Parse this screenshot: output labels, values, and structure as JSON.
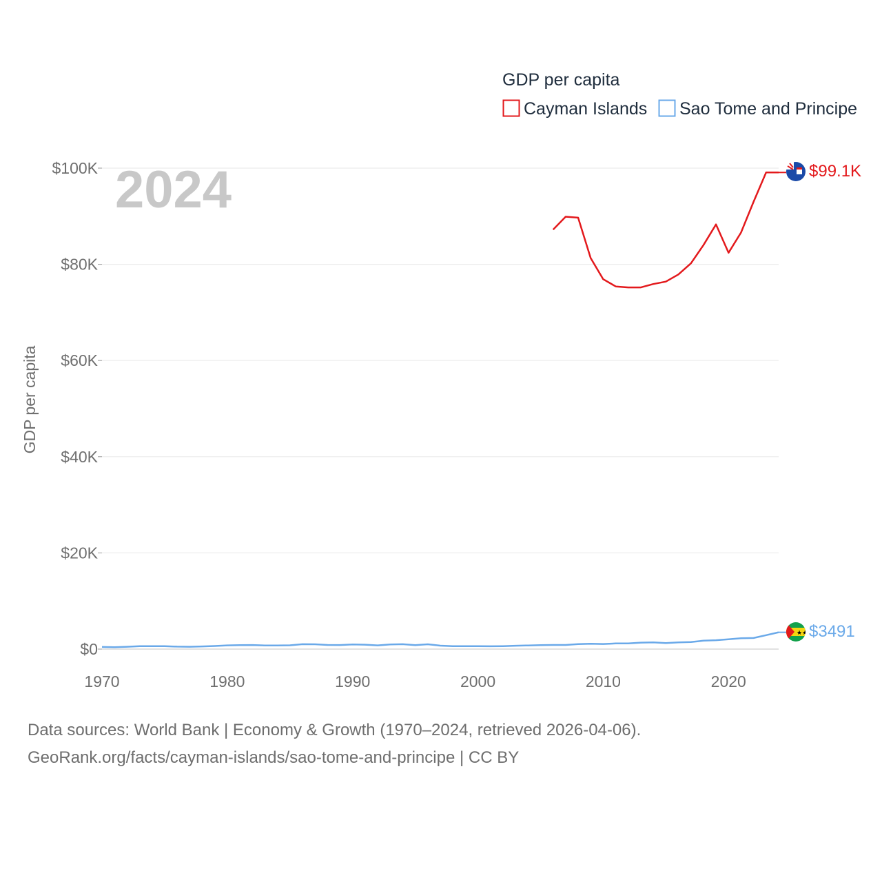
{
  "legend": {
    "title": "GDP per capita",
    "items": [
      "Cayman Islands",
      "Sao Tome and Principe"
    ]
  },
  "year_label": "2024",
  "source": {
    "line1": "Data sources: World Bank | Economy & Growth (1970–2024, retrieved 2026-04-06).",
    "line2": "GeoRank.org/facts/cayman-islands/sao-tome-and-principe | CC BY"
  },
  "chart_data": {
    "type": "line",
    "title": "GDP per capita",
    "xlabel": "",
    "ylabel": "GDP per capita",
    "xlim": [
      1970,
      2024
    ],
    "ylim": [
      0,
      100000
    ],
    "x_ticks": [
      1970,
      1980,
      1990,
      2000,
      2010,
      2020
    ],
    "y_ticks": [
      0,
      20000,
      40000,
      60000,
      80000,
      100000
    ],
    "y_tick_labels": [
      "$0",
      "$20K",
      "$40K",
      "$60K",
      "$80K",
      "$100K"
    ],
    "grid": true,
    "series": [
      {
        "name": "Cayman Islands",
        "color": "#e3191c",
        "end_label": "$99.1K",
        "flag_icon": "cayman-islands-flag-icon",
        "x": [
          2006,
          2007,
          2008,
          2009,
          2010,
          2011,
          2012,
          2013,
          2014,
          2015,
          2016,
          2017,
          2018,
          2019,
          2020,
          2021,
          2022,
          2023,
          2024
        ],
        "values": [
          87200,
          89900,
          89700,
          81300,
          76900,
          75400,
          75200,
          75200,
          75900,
          76400,
          77900,
          80200,
          84000,
          88300,
          82400,
          86600,
          93000,
          99100,
          99100
        ]
      },
      {
        "name": "Sao Tome and Principe",
        "color": "#6aa9e9",
        "end_label": "$3491",
        "flag_icon": "sao-tome-and-principe-flag-icon",
        "x": [
          1970,
          1971,
          1972,
          1973,
          1974,
          1975,
          1976,
          1977,
          1978,
          1979,
          1980,
          1981,
          1982,
          1983,
          1984,
          1985,
          1986,
          1987,
          1988,
          1989,
          1990,
          1991,
          1992,
          1993,
          1994,
          1995,
          1996,
          1997,
          1998,
          1999,
          2000,
          2001,
          2002,
          2003,
          2004,
          2005,
          2006,
          2007,
          2008,
          2009,
          2010,
          2011,
          2012,
          2013,
          2014,
          2015,
          2016,
          2017,
          2018,
          2019,
          2020,
          2021,
          2022,
          2023,
          2024
        ],
        "values": [
          450,
          400,
          480,
          600,
          620,
          610,
          520,
          480,
          560,
          640,
          780,
          820,
          840,
          760,
          740,
          790,
          1020,
          1000,
          860,
          840,
          960,
          920,
          780,
          960,
          1020,
          820,
          1000,
          720,
          620,
          600,
          600,
          590,
          620,
          700,
          760,
          820,
          860,
          860,
          1050,
          1100,
          1060,
          1180,
          1180,
          1350,
          1400,
          1260,
          1400,
          1480,
          1750,
          1850,
          2050,
          2250,
          2300,
          2900,
          3491
        ]
      }
    ]
  }
}
